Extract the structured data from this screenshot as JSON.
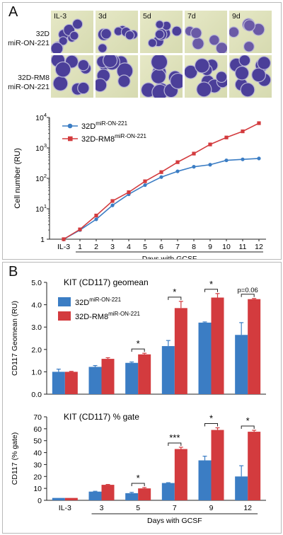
{
  "panel_a": {
    "letter": "A",
    "micrographs": {
      "columns": [
        "IL-3",
        "3d",
        "5d",
        "7d",
        "9d"
      ],
      "rows": [
        {
          "label_line1": "32D",
          "label_line2": "miR-ON-221"
        },
        {
          "label_line1": "32D-RM8",
          "label_line2": "miR-ON-221"
        }
      ]
    }
  },
  "panel_b": {
    "letter": "B"
  },
  "chart_data": [
    {
      "type": "line",
      "ylabel": "Cell number (RU)",
      "xlabel": "Days with GCSF",
      "yscale": "log",
      "ylim": [
        1,
        10000
      ],
      "y_tick_labels": [
        "1",
        "10",
        "10",
        "10",
        "10"
      ],
      "y_tick_exponents": [
        "",
        "1",
        "2",
        "3",
        "4"
      ],
      "categories": [
        "IL-3",
        "1",
        "2",
        "3",
        "4",
        "5",
        "6",
        "7",
        "8",
        "9",
        "10",
        "11",
        "12"
      ],
      "series": [
        {
          "name": "32D",
          "name_sup": "miR-ON-221",
          "color": "#3b7dc4",
          "marker": "circle",
          "values": [
            1,
            2,
            4.5,
            13,
            30,
            60,
            110,
            170,
            240,
            280,
            390,
            420,
            450
          ]
        },
        {
          "name": "32D-RM8",
          "name_sup": "miR-ON-221",
          "color": "#d33b3e",
          "marker": "square",
          "values": [
            1,
            2.1,
            6,
            18,
            35,
            80,
            160,
            340,
            650,
            1300,
            2200,
            3500,
            6500
          ]
        }
      ],
      "legend_position": "top-left"
    },
    {
      "type": "bar",
      "title": "KIT (CD117) geomean",
      "ylabel": "CD117 Geomean (RU)",
      "ylim": [
        0,
        5
      ],
      "y_ticks": [
        "0.0",
        "1.0",
        "2.0",
        "3.0",
        "4.0",
        "5.0"
      ],
      "categories": [
        "IL-3",
        "3",
        "5",
        "7",
        "9",
        "12"
      ],
      "series": [
        {
          "name": "32D",
          "name_sup": "miR-ON-221",
          "color": "#3b7dc4",
          "values": [
            1.0,
            1.22,
            1.4,
            2.15,
            3.2,
            2.65
          ],
          "errors": [
            0.12,
            0.06,
            0.04,
            0.25,
            0.03,
            0.55
          ]
        },
        {
          "name": "32D-RM8",
          "name_sup": "miR-ON-221",
          "color": "#d33b3e",
          "values": [
            1.0,
            1.58,
            1.78,
            3.85,
            4.32,
            4.25
          ],
          "errors": [
            0.02,
            0.05,
            0.05,
            0.3,
            0.18,
            0.03
          ]
        }
      ],
      "annotations": [
        {
          "category": "5",
          "text": "*"
        },
        {
          "category": "7",
          "text": "*"
        },
        {
          "category": "9",
          "text": "*"
        },
        {
          "category": "12",
          "text": "p=0.06"
        }
      ],
      "legend_position": "top-left"
    },
    {
      "type": "bar",
      "title": "KIT (CD117) % gate",
      "ylabel": "CD117 (% gate)",
      "xlabel": "Days with GCSF",
      "ylim": [
        0,
        70
      ],
      "y_ticks": [
        "0",
        "10",
        "20",
        "30",
        "40",
        "50",
        "60",
        "70"
      ],
      "categories": [
        "IL-3",
        "3",
        "5",
        "7",
        "9",
        "12"
      ],
      "series": [
        {
          "name": "32D",
          "name_sup": "miR-ON-221",
          "color": "#3b7dc4",
          "values": [
            2,
            7.3,
            6,
            14.5,
            33.5,
            20
          ],
          "errors": [
            0,
            0.3,
            0.7,
            0.3,
            3.5,
            9
          ]
        },
        {
          "name": "32D-RM8",
          "name_sup": "miR-ON-221",
          "color": "#d33b3e",
          "values": [
            2,
            13,
            10,
            43,
            59,
            57.5
          ],
          "errors": [
            0,
            0.3,
            0.7,
            1.5,
            1.8,
            1.2
          ]
        }
      ],
      "annotations": [
        {
          "category": "5",
          "text": "*"
        },
        {
          "category": "7",
          "text": "***"
        },
        {
          "category": "9",
          "text": "*"
        },
        {
          "category": "12",
          "text": "*"
        }
      ]
    }
  ]
}
